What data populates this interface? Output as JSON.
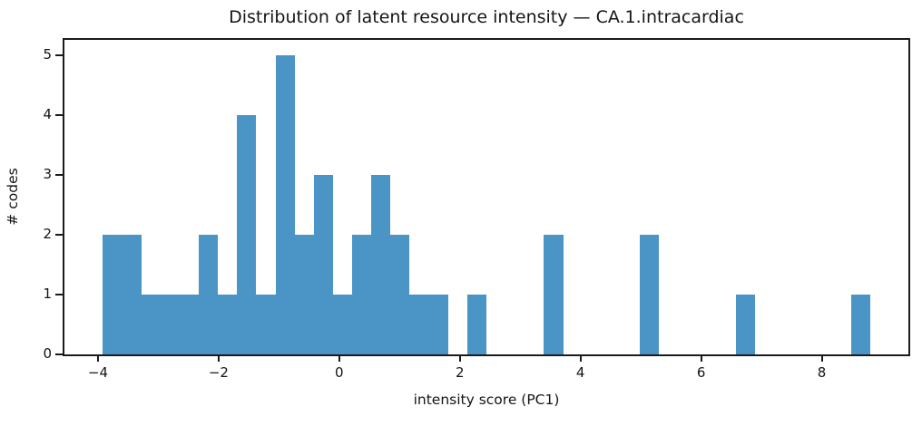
{
  "chart_data": {
    "type": "bar",
    "subtype": "histogram",
    "title": "Distribution of latent resource intensity — CA.1.intracardiac",
    "xlabel": "intensity score (PC1)",
    "ylabel": "# codes",
    "bar_color": "#4B94C6",
    "axis_color": "#1b1b1b",
    "grid": false,
    "legend": "none",
    "histogram": {
      "bin_start": -3.92,
      "bin_width": 0.318,
      "counts": [
        2,
        2,
        1,
        1,
        1,
        2,
        1,
        4,
        1,
        5,
        2,
        3,
        1,
        2,
        3,
        2,
        1,
        1,
        0,
        1,
        0,
        0,
        0,
        2,
        0,
        0,
        0,
        0,
        2,
        0,
        0,
        0,
        0,
        1,
        0,
        0,
        0,
        0,
        0,
        1
      ]
    },
    "xlim": [
      -4.556,
      9.436
    ],
    "ylim": [
      0,
      5.25
    ],
    "xticks": [
      {
        "value": -4,
        "label": "−4"
      },
      {
        "value": -2,
        "label": "−2"
      },
      {
        "value": 0,
        "label": "0"
      },
      {
        "value": 2,
        "label": "2"
      },
      {
        "value": 4,
        "label": "4"
      },
      {
        "value": 6,
        "label": "6"
      },
      {
        "value": 8,
        "label": "8"
      }
    ],
    "yticks": [
      {
        "value": 0,
        "label": "0"
      },
      {
        "value": 1,
        "label": "1"
      },
      {
        "value": 2,
        "label": "2"
      },
      {
        "value": 3,
        "label": "3"
      },
      {
        "value": 4,
        "label": "4"
      },
      {
        "value": 5,
        "label": "5"
      }
    ]
  }
}
